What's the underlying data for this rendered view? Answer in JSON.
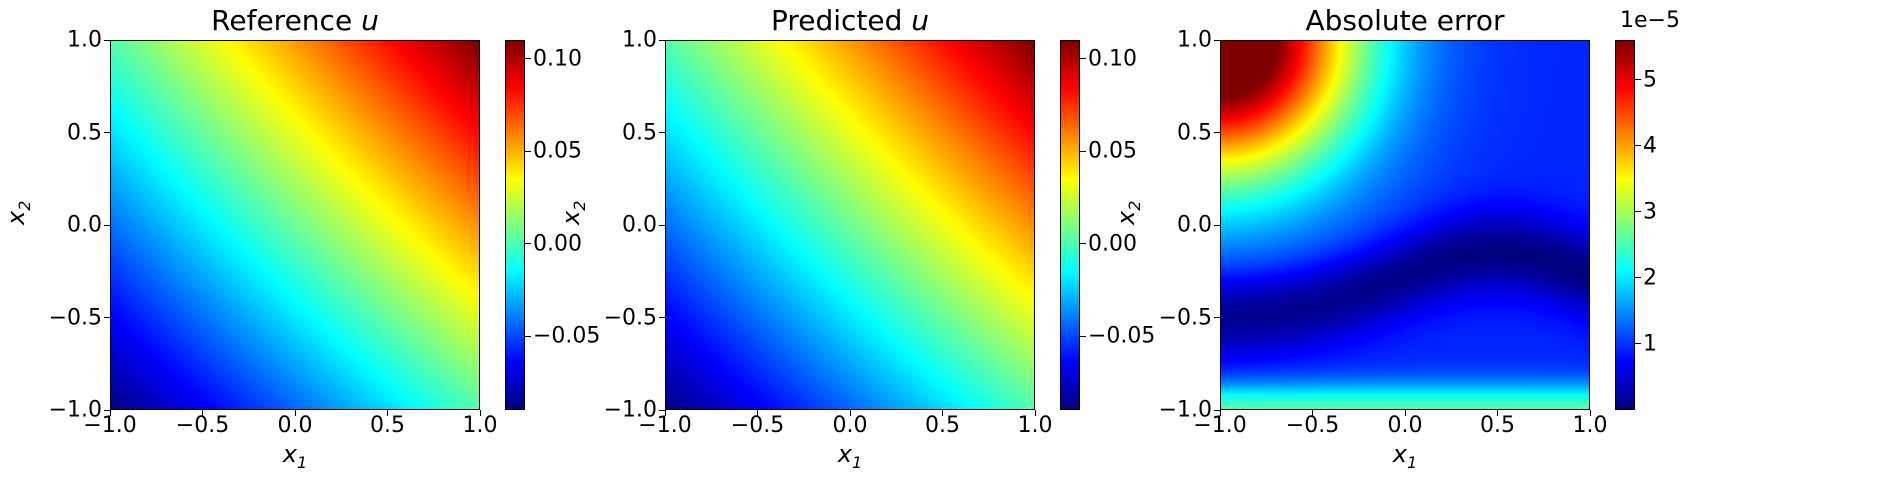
{
  "chart_data": [
    {
      "type": "heatmap",
      "title": "Reference u",
      "title_parts": [
        "Reference ",
        "u"
      ],
      "xlabel": "x1",
      "ylabel": "x2",
      "xlim": [
        -1.0,
        1.0
      ],
      "ylim": [
        -1.0,
        1.0
      ],
      "xticks": [
        "−1.0",
        "−0.5",
        "0.0",
        "0.5",
        "1.0"
      ],
      "yticks": [
        "1.0",
        "0.5",
        "0.0",
        "−0.5",
        "−1.0"
      ],
      "colormap": "jet",
      "clim": [
        -0.09,
        0.11
      ],
      "colorbar_ticks": [
        0.1,
        0.05,
        0.0,
        -0.05
      ],
      "colorbar_ticklabels": [
        "0.10",
        "0.05",
        "0.00",
        "−0.05"
      ],
      "field": "approximately linear ramp u ≈ 0.05·(x1 + x2), min ≈ −0.09 at (−1,−1), max ≈ 0.11 at (1,1)",
      "corner_values": {
        "bottom_left": -0.09,
        "top_right": 0.11,
        "top_left": 0.0,
        "bottom_right": 0.0
      }
    },
    {
      "type": "heatmap",
      "title": "Predicted u",
      "title_parts": [
        "Predicted ",
        "u"
      ],
      "xlabel": "x1",
      "ylabel": "x2",
      "xlim": [
        -1.0,
        1.0
      ],
      "ylim": [
        -1.0,
        1.0
      ],
      "xticks": [
        "−1.0",
        "−0.5",
        "0.0",
        "0.5",
        "1.0"
      ],
      "yticks": [
        "1.0",
        "0.5",
        "0.0",
        "−0.5",
        "−1.0"
      ],
      "colormap": "jet",
      "clim": [
        -0.09,
        0.11
      ],
      "colorbar_ticks": [
        0.1,
        0.05,
        0.0,
        -0.05
      ],
      "colorbar_ticklabels": [
        "0.10",
        "0.05",
        "0.00",
        "−0.05"
      ],
      "corner_values": {
        "bottom_left": -0.09,
        "top_right": 0.11,
        "top_left": 0.0,
        "bottom_right": 0.0
      }
    },
    {
      "type": "heatmap",
      "title": "Absolute error",
      "title_parts": [
        "Absolute error",
        ""
      ],
      "xlabel": "x1",
      "ylabel": "x2",
      "xlim": [
        -1.0,
        1.0
      ],
      "ylim": [
        -1.0,
        1.0
      ],
      "xticks": [
        "−1.0",
        "−0.5",
        "0.0",
        "0.5",
        "1.0"
      ],
      "yticks": [
        "1.0",
        "0.5",
        "0.0",
        "−0.5",
        "−1.0"
      ],
      "colormap": "jet",
      "clim": [
        0.0,
        5.6e-05
      ],
      "colorbar_ticks": [
        5e-05,
        4e-05,
        3e-05,
        2e-05,
        1e-05
      ],
      "colorbar_ticklabels": [
        "5",
        "4",
        "3",
        "2",
        "1"
      ],
      "colorbar_exponent": "1e−5",
      "max_value": 5.6e-05,
      "max_location": [
        -1.0,
        1.0
      ]
    }
  ]
}
